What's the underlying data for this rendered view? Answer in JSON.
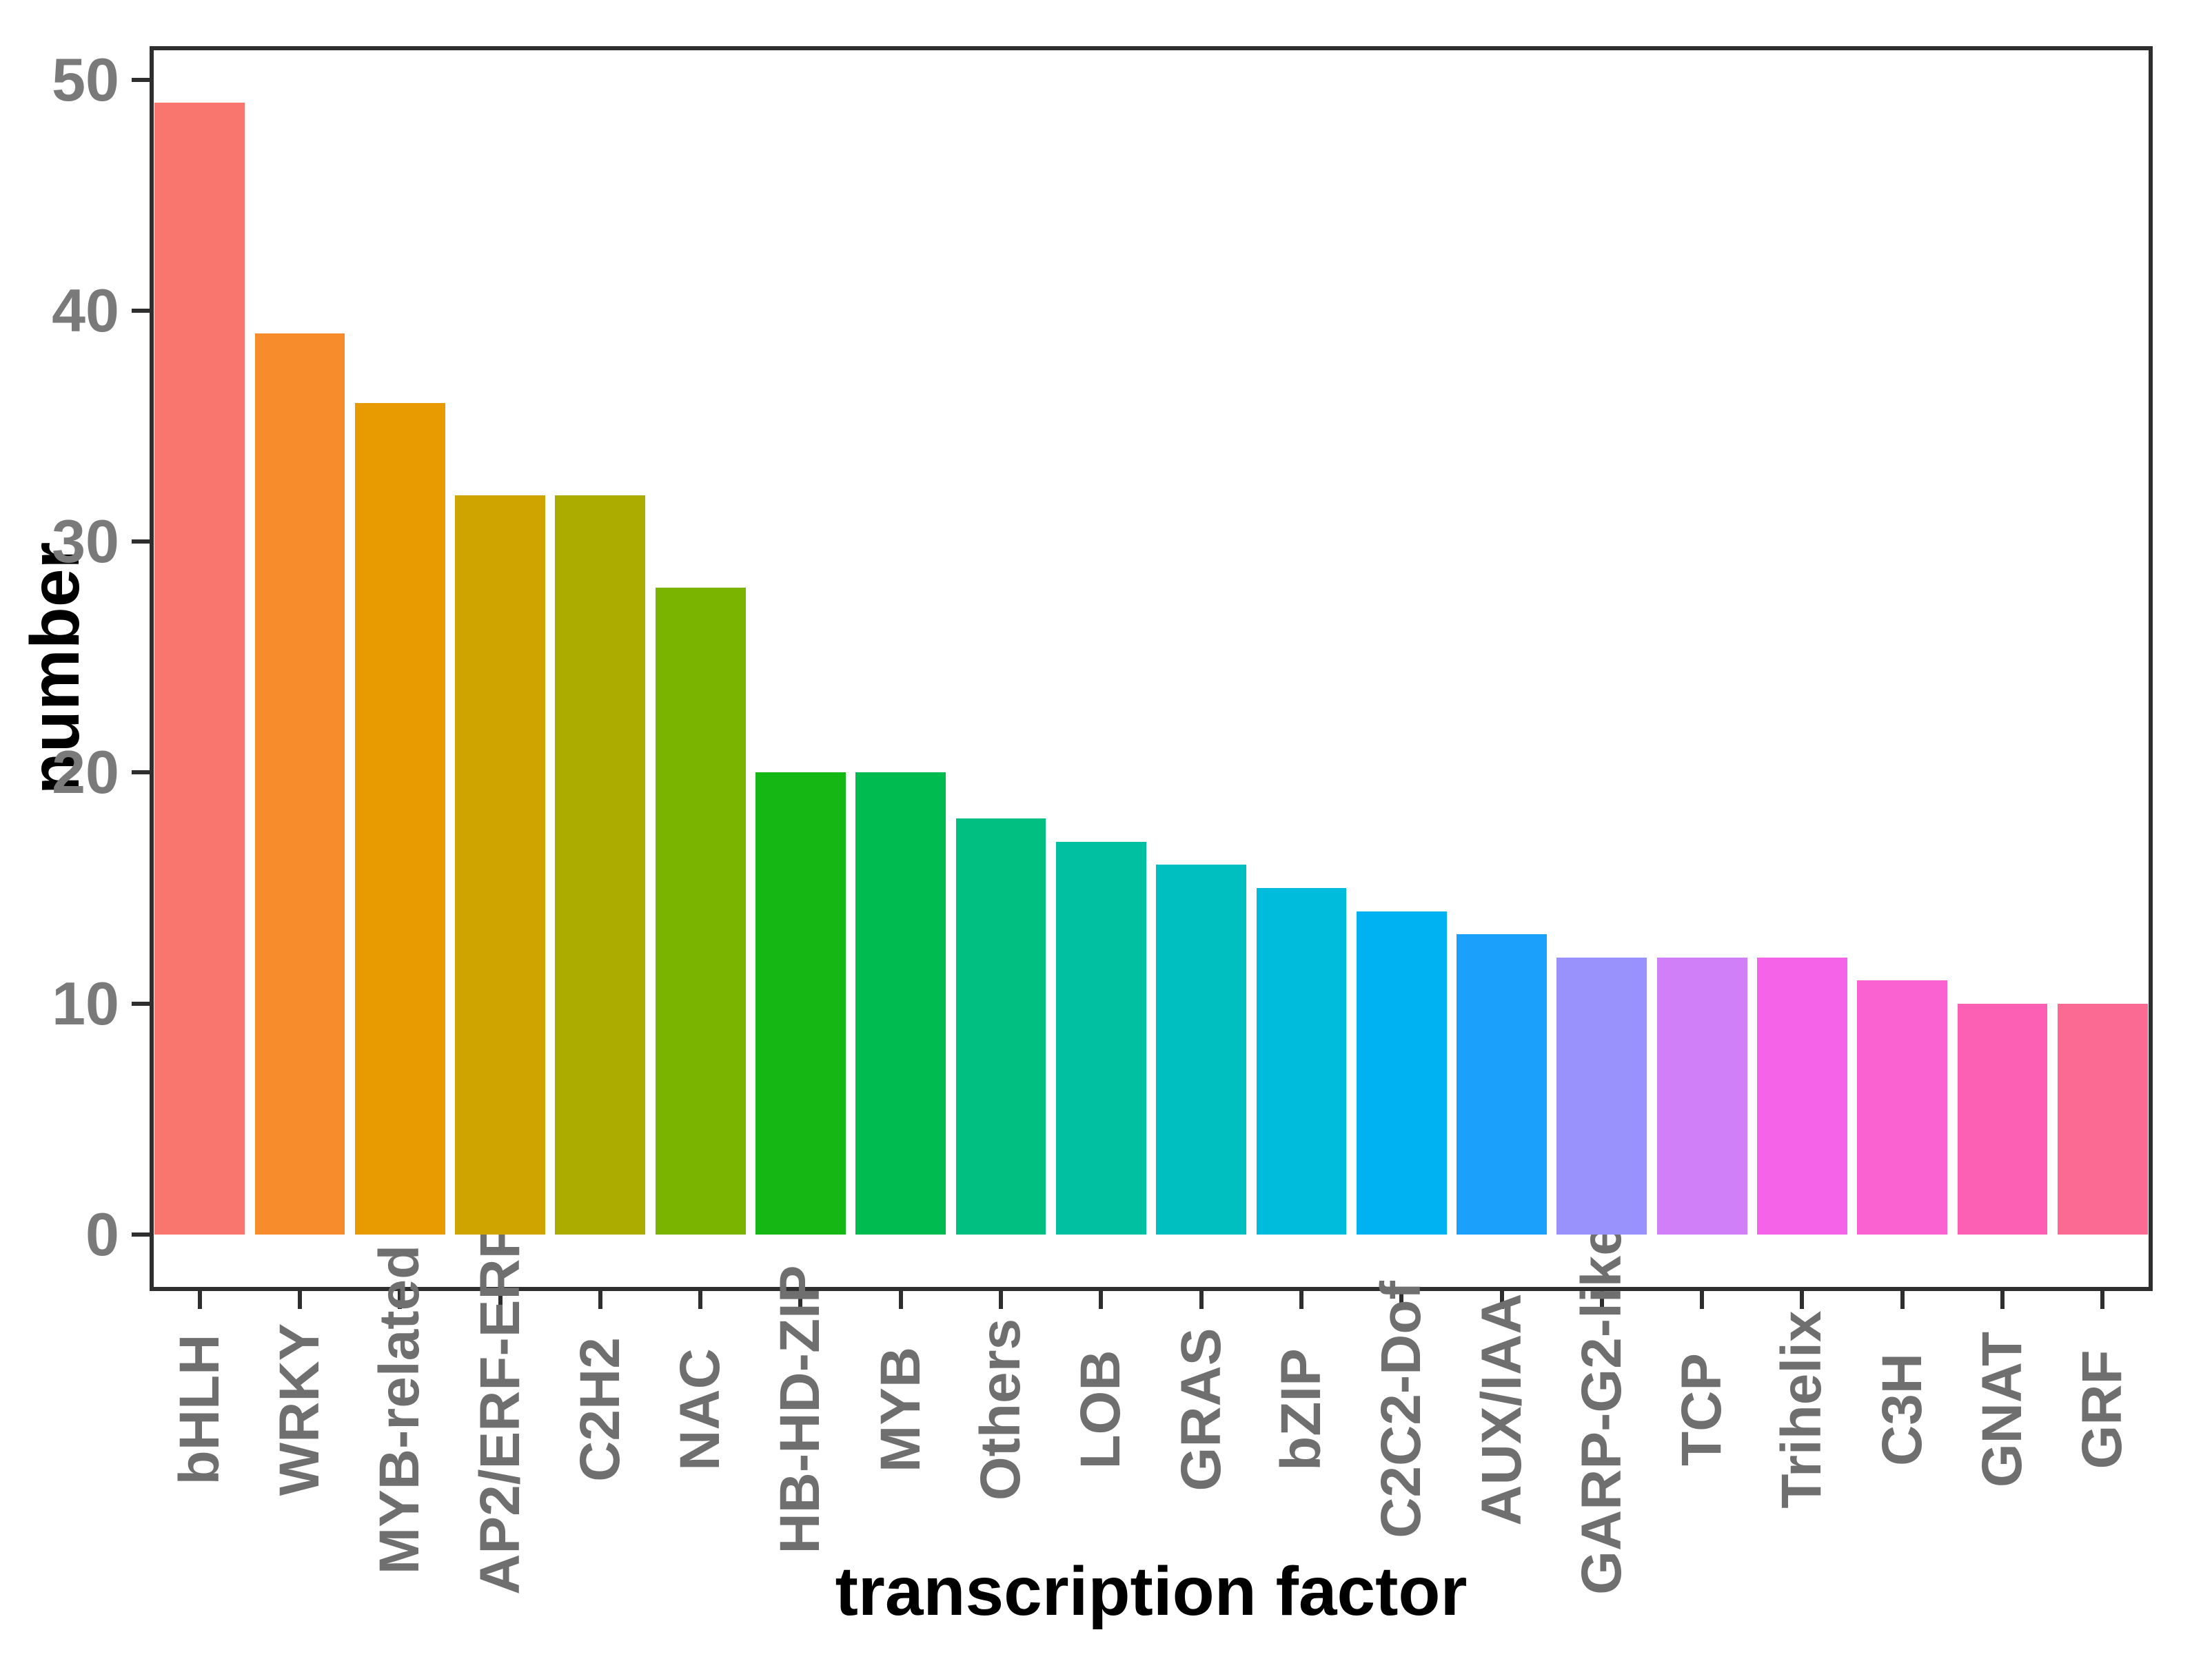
{
  "chart_data": {
    "type": "bar",
    "title": "",
    "xlabel": "transcription factor",
    "ylabel": "number",
    "categories": [
      "bHLH",
      "WRKY",
      "MYB-related",
      "AP2/ERF-ERF",
      "C2H2",
      "NAC",
      "HB-HD-ZIP",
      "MYB",
      "Others",
      "LOB",
      "GRAS",
      "bZIP",
      "C2C2-Dof",
      "AUX/IAA",
      "GARP-G2-like",
      "TCP",
      "Trihelix",
      "C3H",
      "GNAT",
      "GRF"
    ],
    "values": [
      49,
      39,
      36,
      32,
      32,
      28,
      20,
      20,
      18,
      17,
      16,
      15,
      14,
      13,
      12,
      12,
      12,
      11,
      10,
      10
    ],
    "bar_colors": [
      "#F8766D",
      "#F68C2B",
      "#E89B00",
      "#CFA400",
      "#ABAB00",
      "#7AB300",
      "#15B715",
      "#00BB50",
      "#00BF80",
      "#00C0A2",
      "#00BFC0",
      "#00BCDC",
      "#00B2F2",
      "#1BA0FC",
      "#9A92FC",
      "#D07FF9",
      "#F564E8",
      "#FA62D2",
      "#FC60B4",
      "#FB6A92"
    ],
    "y_ticks": [
      0,
      10,
      20,
      30,
      40,
      50
    ],
    "ylim": [
      -2.45,
      51.45
    ],
    "grid": false,
    "legend": "none",
    "background": "#ffffff",
    "panel_border_color": "#2e2e2e",
    "tick_label_color": "#7a7a7a",
    "axis_title_color": "#000000"
  }
}
